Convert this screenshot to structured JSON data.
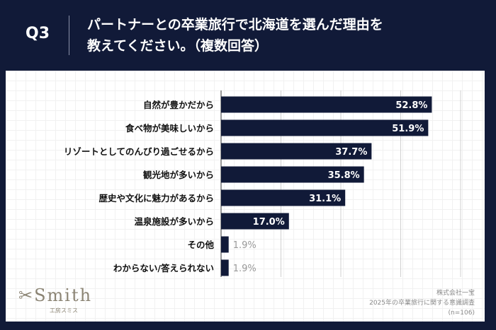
{
  "header": {
    "question": "Q3",
    "title_line1": "パートナーとの卒業旅行で北海道を選んだ理由を",
    "title_line2": "教えてください。（複数回答）"
  },
  "colors": {
    "background": "#111a38",
    "bar": "#111a38",
    "label_inside": "#ffffff",
    "label_outside": "#999999"
  },
  "chart_data": {
    "type": "bar",
    "orientation": "horizontal",
    "categories": [
      "自然が豊かだから",
      "食べ物が美味しいから",
      "リゾートとしてのんびり過ごせるから",
      "観光地が多いから",
      "歴史や文化に魅力があるから",
      "温泉施設が多いから",
      "その他",
      "わからない/答えられない"
    ],
    "values": [
      52.8,
      51.9,
      37.7,
      35.8,
      31.1,
      17.0,
      1.9,
      1.9
    ],
    "labels": [
      "52.8%",
      "51.9%",
      "37.7%",
      "35.8%",
      "31.1%",
      "17.0%",
      "1.9%",
      "1.9%"
    ],
    "xlim": [
      0,
      60
    ],
    "grid_interval": 15,
    "grid": true
  },
  "footer": {
    "logo": "Smith",
    "logo_sub": "工房スミス",
    "company": "株式会社一宝",
    "survey": "2025年の卒業旅行に関する意識調査",
    "n": "(n=106)"
  }
}
